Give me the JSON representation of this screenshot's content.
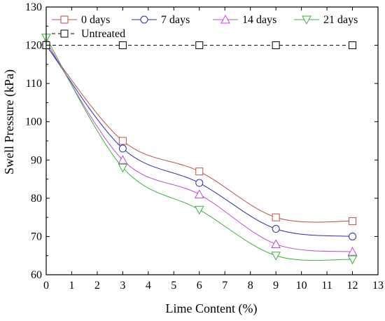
{
  "chart_data": {
    "type": "line",
    "title": "",
    "xlabel": "Lime Content (%)",
    "ylabel": "Swell Pressure (kPa)",
    "xlim": [
      0,
      13
    ],
    "ylim": [
      60,
      130
    ],
    "xticks": [
      0,
      1,
      2,
      3,
      4,
      5,
      6,
      7,
      8,
      9,
      10,
      11,
      12,
      13
    ],
    "yticks": [
      60,
      70,
      80,
      90,
      100,
      110,
      120,
      130
    ],
    "x": [
      0,
      3,
      6,
      9,
      12
    ],
    "grid": false,
    "legend_position": "top",
    "series": [
      {
        "name": "0 days",
        "color": "#b5524a",
        "marker": "square",
        "smooth": true,
        "values": [
          120,
          95,
          87,
          75,
          74
        ]
      },
      {
        "name": "7 days",
        "color": "#2b2fa8",
        "marker": "circle",
        "smooth": true,
        "values": [
          120,
          93,
          84,
          72,
          70
        ]
      },
      {
        "name": "14 days",
        "color": "#c04ad0",
        "marker": "triangle-up",
        "smooth": true,
        "values": [
          121,
          90,
          81,
          68,
          66
        ]
      },
      {
        "name": "21 days",
        "color": "#3fae3f",
        "marker": "triangle-down",
        "smooth": true,
        "values": [
          122,
          88,
          77,
          65,
          64
        ]
      },
      {
        "name": "Untreated",
        "color": "#000000",
        "marker": "square",
        "dashed": true,
        "smooth": false,
        "values": [
          120,
          120,
          120,
          120,
          120
        ]
      }
    ]
  }
}
